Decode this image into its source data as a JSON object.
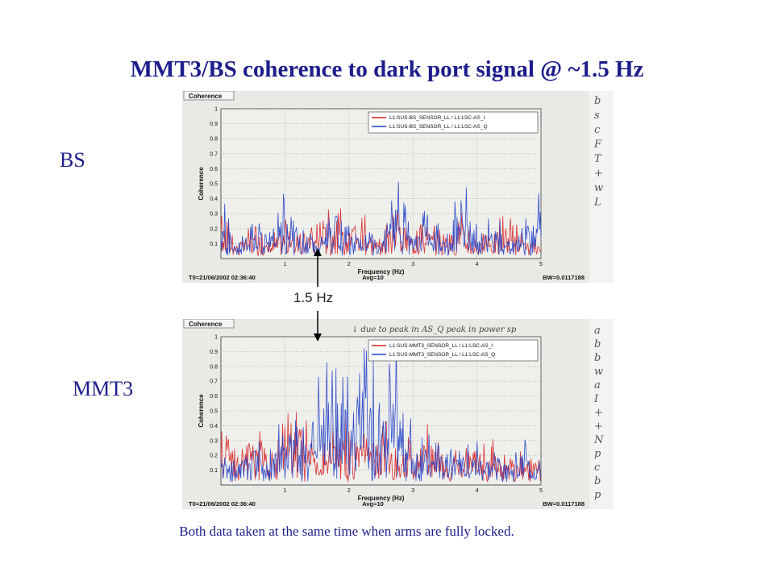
{
  "page": {
    "title": "MMT3/BS coherence to dark port signal @ ~1.5 Hz",
    "label_bs": "BS",
    "label_mmt3": "MMT3",
    "arrow_label": "1.5 Hz",
    "caption": "Both data taken at the same time when arms are fully locked."
  },
  "colors": {
    "series_i": "#d81e1e",
    "series_q": "#1f3fc8",
    "title": "#1d1d8c",
    "plot_bg": "#e9e9e6"
  },
  "chart_data": [
    {
      "type": "line",
      "panel_title": "Coherence",
      "xlabel": "Frequency (Hz)",
      "ylabel": "Coherence",
      "xlim": [
        0,
        5
      ],
      "ylim": [
        0,
        1
      ],
      "xticks": [
        "1",
        "2",
        "3",
        "4",
        "5"
      ],
      "yticks": [
        "0.1",
        "0.2",
        "0.3",
        "0.4",
        "0.5",
        "0.6",
        "0.7",
        "0.8",
        "0.9",
        "1"
      ],
      "grid": true,
      "legend_position": "top-right",
      "footer_left": "T0=21/06/2002 02:36:40",
      "footer_center": "Avg=10",
      "footer_right": "BW=0.0117188",
      "series": [
        {
          "name": "L1:SUS-BS_SENSOR_LL / L1:LSC-AS_I",
          "color": "#d81e1e",
          "x": [
            0.0,
            0.25,
            0.5,
            0.75,
            1.0,
            1.25,
            1.5,
            1.75,
            2.0,
            2.25,
            2.5,
            2.75,
            3.0,
            3.25,
            3.5,
            3.75,
            4.0,
            4.25,
            4.5,
            4.75,
            5.0
          ],
          "values": [
            0.3,
            0.12,
            0.2,
            0.1,
            0.28,
            0.15,
            0.22,
            0.4,
            0.18,
            0.3,
            0.12,
            0.35,
            0.2,
            0.25,
            0.14,
            0.3,
            0.1,
            0.22,
            0.28,
            0.12,
            0.1
          ]
        },
        {
          "name": "L1:SUS-BS_SENSOR_LL / L1:LSC-AS_Q",
          "color": "#1f3fc8",
          "x": [
            0.0,
            0.25,
            0.5,
            0.75,
            1.0,
            1.25,
            1.5,
            1.75,
            2.0,
            2.25,
            2.5,
            2.75,
            3.0,
            3.25,
            3.5,
            3.75,
            4.0,
            4.25,
            4.5,
            4.75,
            5.0
          ],
          "values": [
            0.45,
            0.1,
            0.25,
            0.15,
            0.4,
            0.18,
            0.15,
            0.3,
            0.22,
            0.2,
            0.1,
            0.5,
            0.15,
            0.35,
            0.12,
            0.55,
            0.2,
            0.3,
            0.12,
            0.25,
            0.52
          ]
        }
      ]
    },
    {
      "type": "line",
      "panel_title": "Coherence",
      "xlabel": "Frequency (Hz)",
      "ylabel": "Coherence",
      "xlim": [
        0,
        5
      ],
      "ylim": [
        0,
        1
      ],
      "xticks": [
        "1",
        "2",
        "3",
        "4",
        "5"
      ],
      "yticks": [
        "0.1",
        "0.2",
        "0.3",
        "0.4",
        "0.5",
        "0.6",
        "0.7",
        "0.8",
        "0.9",
        "1"
      ],
      "grid": true,
      "legend_position": "top-right",
      "footer_left": "T0=21/06/2002 02:36:40",
      "footer_center": "Avg=10",
      "footer_right": "BW=0.0117188",
      "series": [
        {
          "name": "L1:SUS-MMT3_SENSOR_LL / L1:LSC-AS_I",
          "color": "#d81e1e",
          "x": [
            0.0,
            0.25,
            0.5,
            0.75,
            1.0,
            1.25,
            1.5,
            1.75,
            2.0,
            2.25,
            2.5,
            2.75,
            3.0,
            3.25,
            3.5,
            3.75,
            4.0,
            4.25,
            4.5,
            4.75,
            5.0
          ],
          "values": [
            0.65,
            0.2,
            0.45,
            0.15,
            0.4,
            0.55,
            0.2,
            0.35,
            0.5,
            0.3,
            0.45,
            0.25,
            0.3,
            0.4,
            0.15,
            0.25,
            0.2,
            0.3,
            0.15,
            0.22,
            0.18
          ]
        },
        {
          "name": "L1:SUS-MMT3_SENSOR_LL / L1:LSC-AS_Q",
          "color": "#1f3fc8",
          "x": [
            0.0,
            0.25,
            0.5,
            0.75,
            1.0,
            1.25,
            1.5,
            1.75,
            2.0,
            2.25,
            2.5,
            2.75,
            3.0,
            3.25,
            3.5,
            3.75,
            4.0,
            4.25,
            4.5,
            4.75,
            5.0
          ],
          "values": [
            0.3,
            0.15,
            0.35,
            0.2,
            0.55,
            0.3,
            0.7,
            0.8,
            0.75,
            0.95,
            0.6,
            0.85,
            0.4,
            0.3,
            0.25,
            0.2,
            0.3,
            0.22,
            0.15,
            0.28,
            0.2
          ]
        }
      ]
    }
  ],
  "handwriting": {
    "top_note": "↓ due to peak in AS_Q peak in power sp",
    "margin_top": [
      "b",
      "s",
      "c",
      "F",
      "T",
      "+",
      "w",
      "L"
    ],
    "margin_bottom": [
      "a",
      "b",
      "b",
      "w",
      "a",
      "I",
      "+",
      "+",
      "N",
      "p",
      "c",
      "b",
      "p"
    ]
  }
}
